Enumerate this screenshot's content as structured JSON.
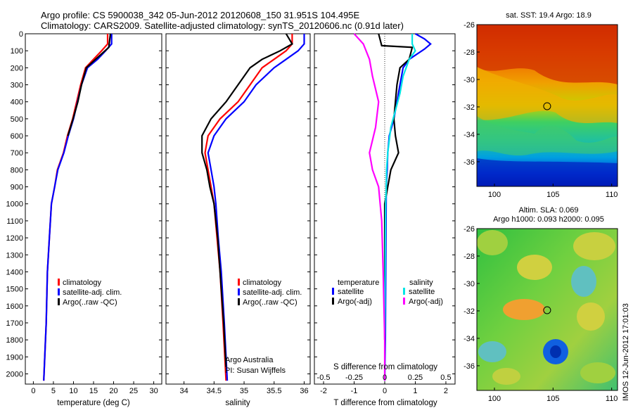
{
  "header": {
    "line1": "Argo profile: CS 5900038_342 05-Jun-2012 20120608_150 31.951S 104.495E",
    "line2": "Climatology: CARS2009. Satellite-adjusted climatology: synTS_20120606.nc (0.91d later)"
  },
  "depth_ticks": [
    0,
    100,
    200,
    300,
    400,
    500,
    600,
    700,
    800,
    900,
    1000,
    1100,
    1200,
    1300,
    1400,
    1500,
    1600,
    1700,
    1800,
    1900,
    2000
  ],
  "chart_data": [
    {
      "type": "line",
      "name": "temperature-profile",
      "xlabel": "temperature (deg C)",
      "xlim": [
        -2,
        32
      ],
      "ylim": [
        2060,
        0
      ],
      "xticks": [
        0,
        5,
        10,
        15,
        20,
        25,
        30
      ],
      "series": [
        {
          "name": "climatology",
          "color": "#ff0000",
          "x": [
            18.5,
            18.5,
            17,
            15,
            13,
            11.8,
            10.8,
            9.8,
            8.5,
            7.5,
            6,
            5.3,
            4.5,
            4,
            3.5,
            3.2,
            2.6
          ],
          "y": [
            0,
            60,
            100,
            150,
            200,
            300,
            400,
            500,
            600,
            700,
            800,
            900,
            1000,
            1200,
            1400,
            1700,
            2040
          ]
        },
        {
          "name": "satellite-adj. clim.",
          "color": "#0000ff",
          "x": [
            19.5,
            19.5,
            18,
            16,
            13.5,
            12,
            11,
            10,
            8.7,
            7.6,
            6.1,
            5.3,
            4.5,
            4,
            3.5,
            3.2,
            2.6
          ],
          "y": [
            0,
            60,
            100,
            150,
            200,
            300,
            400,
            500,
            600,
            700,
            800,
            900,
            1000,
            1200,
            1400,
            1700,
            2040
          ]
        },
        {
          "name": "Argo(..raw -QC)",
          "color": "#000000",
          "x": [
            19.2,
            19,
            18.8,
            15.5,
            13.2,
            12,
            11.1,
            9.9,
            8.6
          ],
          "y": [
            0,
            40,
            80,
            150,
            200,
            300,
            400,
            500,
            600
          ]
        }
      ],
      "legend": [
        "climatology",
        "satellite-adj. clim.",
        "Argo(..raw -QC)"
      ]
    },
    {
      "type": "line",
      "name": "salinity-profile",
      "xlabel": "salinity",
      "xlim": [
        33.7,
        36.1
      ],
      "ylim": [
        2060,
        0
      ],
      "xticks": [
        34,
        34.5,
        35,
        35.5,
        36
      ],
      "series": [
        {
          "name": "climatology",
          "color": "#ff0000",
          "x": [
            35.8,
            35.8,
            35.7,
            35.5,
            35.3,
            35.1,
            34.9,
            34.6,
            34.4,
            34.35,
            34.4,
            34.45,
            34.5,
            34.55,
            34.6,
            34.65,
            34.7
          ],
          "y": [
            0,
            60,
            100,
            150,
            200,
            300,
            400,
            500,
            600,
            700,
            800,
            900,
            1000,
            1200,
            1400,
            1700,
            2040
          ]
        },
        {
          "name": "satellite-adj. clim.",
          "color": "#0000ff",
          "x": [
            36,
            36,
            35.9,
            35.7,
            35.5,
            35.2,
            35,
            34.7,
            34.5,
            34.4,
            34.45,
            34.5,
            34.53,
            34.57,
            34.62,
            34.67,
            34.72
          ],
          "y": [
            0,
            60,
            100,
            150,
            200,
            300,
            400,
            500,
            600,
            700,
            800,
            900,
            1000,
            1200,
            1400,
            1700,
            2040
          ]
        },
        {
          "name": "Argo(..raw -QC)",
          "color": "#000000",
          "x": [
            35.7,
            35.8,
            35.6,
            35.3,
            35.1,
            34.9,
            34.7,
            34.45,
            34.3,
            34.3,
            34.38,
            34.43,
            34.5,
            34.56,
            34.6,
            34.66,
            34.7
          ],
          "y": [
            0,
            60,
            100,
            150,
            200,
            300,
            400,
            500,
            600,
            700,
            800,
            900,
            1000,
            1200,
            1400,
            1700,
            1960
          ]
        }
      ],
      "legend": [
        "climatology",
        "satellite-adj. clim.",
        "Argo(..raw -QC)"
      ],
      "annotations": [
        "Argo Australia",
        "PI: Susan Wijffels"
      ]
    },
    {
      "type": "line",
      "name": "difference-profile",
      "xlabel": "T difference from climatology",
      "top_axis_label": "S difference from climatology",
      "xlim": [
        -2.3,
        2.3
      ],
      "ylim": [
        2060,
        0
      ],
      "xticks": [
        -2,
        -1,
        0,
        1,
        2
      ],
      "xticklabels": [
        "-2",
        "-1",
        "0",
        "1",
        "2"
      ],
      "top_ticks": [
        -0.5,
        -0.25,
        0,
        0.25,
        0.5
      ],
      "top_ticklabels": [
        "-0.5",
        "-0.25",
        "0",
        "0.25",
        "0.5"
      ],
      "series": [
        {
          "name": "temperature satellite",
          "color": "#0000ff",
          "x": [
            1,
            1.3,
            1.5,
            1.3,
            0.8,
            0.6,
            0.5,
            0.4,
            0.3,
            0.15,
            0.1,
            0.08,
            0.05,
            0.04,
            0.03,
            0.02,
            0
          ],
          "y": [
            0,
            30,
            60,
            90,
            150,
            200,
            300,
            400,
            500,
            600,
            700,
            800,
            900,
            1200,
            1500,
            1800,
            2040
          ]
        },
        {
          "name": "temperature Argo(-adj)",
          "color": "#000000",
          "x": [
            -0.2,
            -0.1,
            0.9,
            0.8,
            0.5,
            0.4,
            0.3,
            0.35,
            0.45,
            0.2,
            0.1,
            0,
            0,
            0,
            0,
            0
          ],
          "y": [
            0,
            70,
            80,
            150,
            200,
            300,
            500,
            600,
            700,
            800,
            900,
            1000,
            1200,
            1400,
            1600,
            1800
          ]
        },
        {
          "name": "salinity satellite",
          "color": "#00e5e5",
          "x": [
            0.9,
            0.9,
            1,
            0.8,
            0.6,
            0.5,
            0.35,
            0.2,
            0.1,
            0.06,
            0.05,
            0.03,
            0.02,
            0.01,
            0
          ],
          "y": [
            0,
            60,
            100,
            150,
            250,
            350,
            450,
            550,
            700,
            800,
            900,
            1000,
            1200,
            1500,
            2040
          ]
        },
        {
          "name": "salinity Argo(-adj)",
          "color": "#ff00ff",
          "x": [
            -1,
            -0.7,
            -0.5,
            -0.4,
            -0.2,
            -0.3,
            -0.5,
            -0.4,
            -0.2,
            -0.15,
            -0.1,
            -0.05,
            0,
            0
          ],
          "y": [
            0,
            60,
            150,
            250,
            400,
            550,
            700,
            800,
            900,
            1000,
            1100,
            1400,
            1800,
            2040
          ]
        }
      ],
      "legend_group_titles": [
        "temperature",
        "salinity"
      ],
      "legend": [
        "satellite",
        "Argo(-adj)",
        "satellite",
        "Argo(-adj)"
      ]
    },
    {
      "type": "heatmap",
      "name": "sst-map",
      "title": "sat. SST: 19.4 Argo: 18.9",
      "xticks": [
        100,
        105,
        110
      ],
      "yticks": [
        -26,
        -28,
        -30,
        -32,
        -34,
        -36
      ],
      "xlim": [
        98.5,
        110.5
      ],
      "ylim": [
        -37.8,
        -26
      ],
      "marker": [
        104.495,
        -31.951
      ]
    },
    {
      "type": "heatmap",
      "name": "sla-map",
      "title_line1": "Altim. SLA: 0.069",
      "title_line2": "Argo h1000: 0.093 h2000: 0.095",
      "xticks": [
        100,
        105,
        110
      ],
      "yticks": [
        -26,
        -28,
        -30,
        -32,
        -34,
        -36
      ],
      "xlim": [
        98.5,
        110.5
      ],
      "ylim": [
        -37.8,
        -26
      ],
      "marker": [
        104.495,
        -31.951
      ]
    }
  ],
  "side_stamp": "IMOS 12-Jun-2012 17:01:03"
}
